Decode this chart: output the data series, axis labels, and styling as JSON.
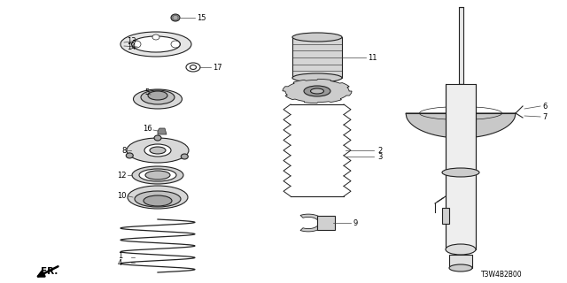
{
  "part_code": "T3W4B2B00",
  "fr_label": "FR.",
  "bg_color": "#ffffff",
  "line_color": "#222222",
  "label_color": "#000000"
}
